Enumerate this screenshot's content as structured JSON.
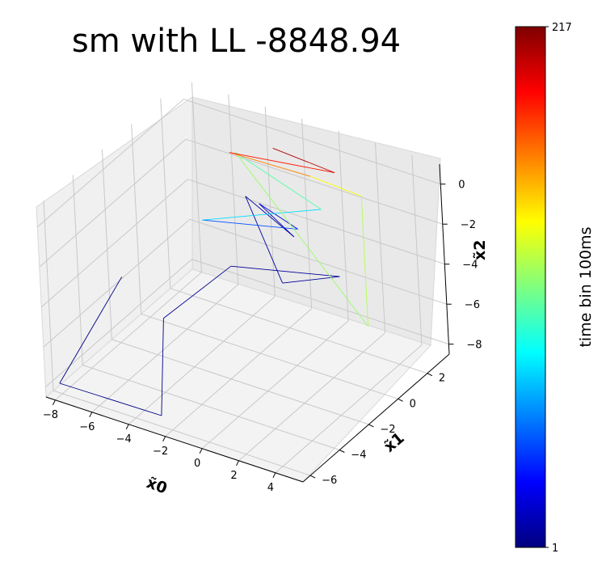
{
  "chart_data": {
    "type": "line3d",
    "title": "sm with LL -8848.94",
    "axes": {
      "x": {
        "label": "x̃0",
        "ticks": [
          -8,
          -6,
          -4,
          -2,
          0,
          2,
          4
        ],
        "range": [
          -8.5,
          5.5
        ]
      },
      "y": {
        "label": "x̃1",
        "ticks": [
          -6,
          -4,
          -2,
          0,
          2
        ],
        "range": [
          -6.5,
          3.5
        ]
      },
      "z": {
        "label": "x̃2",
        "ticks": [
          -8,
          -6,
          -4,
          -2,
          0
        ],
        "range": [
          -8.5,
          1.0
        ]
      }
    },
    "colorbar": {
      "label": "time bin 100ms",
      "min_label": "1",
      "max_label": "217",
      "min": 1,
      "max": 217,
      "colormap": "jet"
    },
    "trajectory_sampled": [
      [
        -6.5,
        -3.5,
        -3.8,
        1
      ],
      [
        -8.3,
        -5.8,
        -8.2,
        2
      ],
      [
        -3.0,
        -5.5,
        -8.4,
        3
      ],
      [
        -6.0,
        -1.5,
        -7.0,
        4
      ],
      [
        -5.5,
        2.5,
        -6.8,
        5
      ],
      [
        0.5,
        2.5,
        -5.5,
        6
      ],
      [
        -1.0,
        0.5,
        -5.0,
        7
      ],
      [
        -4.5,
        2.5,
        -3.0,
        8
      ],
      [
        -1.5,
        2.0,
        -3.8,
        9
      ],
      [
        -2.5,
        1.0,
        -1.8,
        10
      ],
      [
        0.0,
        0.5,
        -2.0,
        30
      ],
      [
        -4.0,
        -1.0,
        -1.8,
        60
      ],
      [
        0.5,
        1.5,
        -1.5,
        90
      ],
      [
        -4.5,
        2.0,
        -0.5,
        110
      ],
      [
        1.5,
        3.0,
        -8.0,
        118
      ],
      [
        1.5,
        3.0,
        -1.5,
        121
      ],
      [
        0.0,
        1.5,
        0.0,
        150
      ],
      [
        -4.0,
        1.0,
        0.3,
        175
      ],
      [
        0.5,
        2.5,
        -0.3,
        195
      ],
      [
        -2.0,
        1.5,
        0.8,
        217
      ]
    ]
  }
}
